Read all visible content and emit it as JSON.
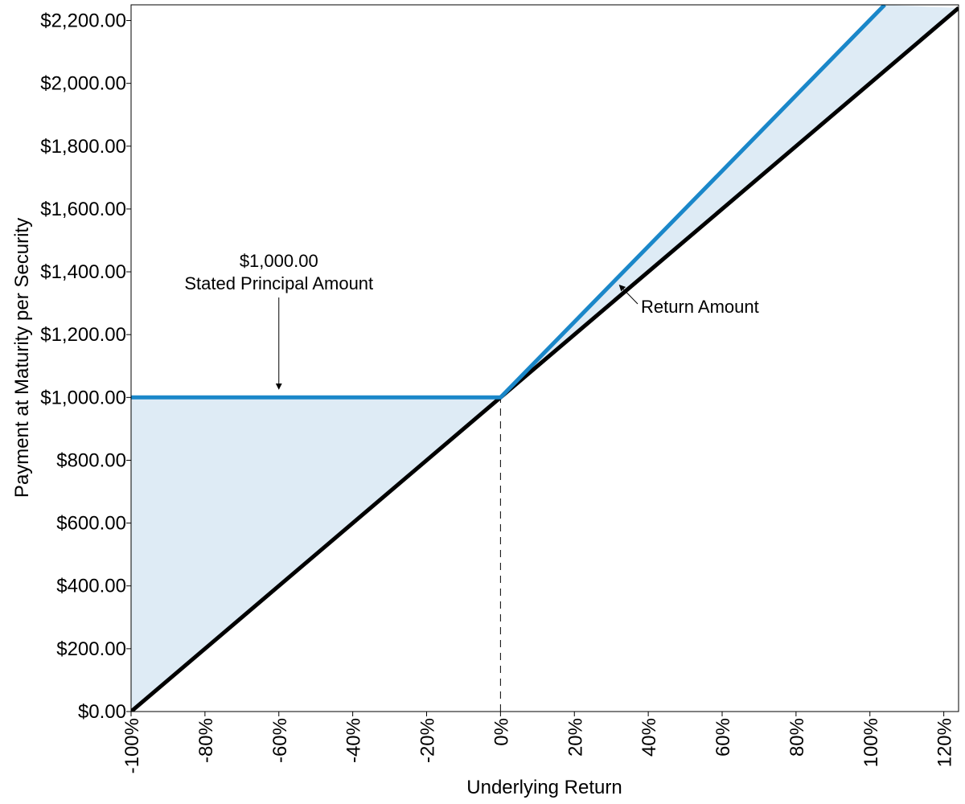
{
  "chart_data": {
    "type": "line",
    "x_unit": "percent",
    "xlim": [
      -100,
      124
    ],
    "ylim": [
      0,
      2250
    ],
    "x_ticks": [
      -100,
      -80,
      -60,
      -40,
      -20,
      0,
      20,
      40,
      60,
      80,
      100,
      120
    ],
    "x_tick_labels": [
      "-100%",
      "-80%",
      "-60%",
      "-40%",
      "-20%",
      "0%",
      "20%",
      "40%",
      "60%",
      "80%",
      "100%",
      "120%"
    ],
    "y_ticks": [
      0,
      200,
      400,
      600,
      800,
      1000,
      1200,
      1400,
      1600,
      1800,
      2000,
      2200
    ],
    "y_tick_labels": [
      "$0.00",
      "$200.00",
      "$400.00",
      "$600.00",
      "$800.00",
      "$1,000.00",
      "$1,200.00",
      "$1,400.00",
      "$1,600.00",
      "$1,800.00",
      "$2,000.00",
      "$2,200.00"
    ],
    "xlabel": "Underlying Return",
    "ylabel": "Payment at Maturity per Security",
    "grid": false,
    "series": [
      {
        "color": "#1a87c9",
        "points": [
          [
            -100,
            1000
          ],
          [
            0,
            1000
          ],
          [
            104,
            2250
          ]
        ]
      },
      {
        "color": "#000000",
        "points": [
          [
            -100,
            0
          ],
          [
            124,
            2240
          ]
        ]
      }
    ],
    "fill_color": "#deebf5",
    "reference_line": {
      "x": 0,
      "style": "dashed",
      "y_from": 0,
      "y_to": 1000
    },
    "annotations": [
      {
        "lines": [
          "$1,000.00",
          "Stated Principal Amount"
        ],
        "arrow_target": [
          -60,
          1050
        ]
      },
      {
        "lines": [
          "Return Amount"
        ],
        "arrow_target": [
          32,
          1360
        ]
      }
    ]
  }
}
